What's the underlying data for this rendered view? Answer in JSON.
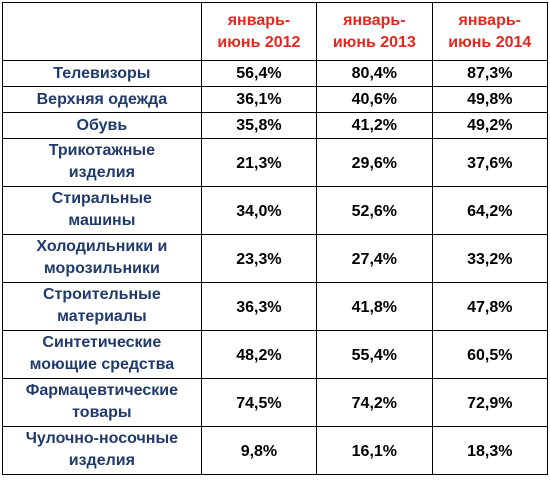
{
  "table": {
    "corner": "",
    "columns": [
      "январь-\nиюнь 2012",
      "январь-\nиюнь 2013",
      "январь-\nиюнь 2014"
    ],
    "rows": [
      {
        "name": "Телевизоры",
        "values": [
          "56,4%",
          "80,4%",
          "87,3%"
        ]
      },
      {
        "name": "Верхняя одежда",
        "values": [
          "36,1%",
          "40,6%",
          "49,8%"
        ]
      },
      {
        "name": "Обувь",
        "values": [
          "35,8%",
          "41,2%",
          "49,2%"
        ]
      },
      {
        "name": "Трикотажные\nизделия",
        "values": [
          "21,3%",
          "29,6%",
          "37,6%"
        ]
      },
      {
        "name": "Стиральные\nмашины",
        "values": [
          "34,0%",
          "52,6%",
          "64,2%"
        ]
      },
      {
        "name": "Холодильники и\nморозильники",
        "values": [
          "23,3%",
          "27,4%",
          "33,2%"
        ]
      },
      {
        "name": "Строительные\nматериалы",
        "values": [
          "36,3%",
          "41,8%",
          "47,8%"
        ]
      },
      {
        "name": "Синтетические\nмоющие средства",
        "values": [
          "48,2%",
          "55,4%",
          "60,5%"
        ]
      },
      {
        "name": "Фармацевтические\nтовары",
        "values": [
          "74,5%",
          "74,2%",
          "72,9%"
        ]
      },
      {
        "name": "Чулочно-носочные\nизделия",
        "values": [
          "9,8%",
          "16,1%",
          "18,3%"
        ]
      }
    ]
  },
  "colors": {
    "header_text": "#e8261f",
    "row_label_text": "#1f3a6b",
    "value_text": "#000000",
    "border": "#000000"
  }
}
